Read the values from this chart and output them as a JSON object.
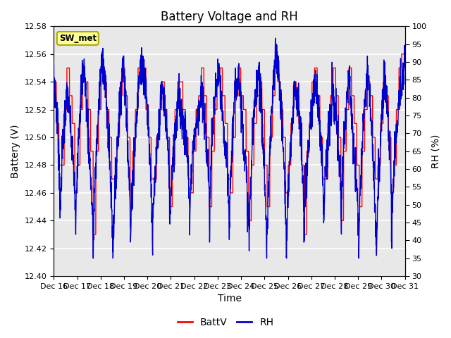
{
  "title": "Battery Voltage and RH",
  "xlabel": "Time",
  "ylabel_left": "Battery (V)",
  "ylabel_right": "RH (%)",
  "ylim_left": [
    12.4,
    12.58
  ],
  "ylim_right": [
    30,
    100
  ],
  "yticks_left": [
    12.4,
    12.42,
    12.44,
    12.46,
    12.48,
    12.5,
    12.52,
    12.54,
    12.56,
    12.58
  ],
  "yticks_right": [
    30,
    35,
    40,
    45,
    50,
    55,
    60,
    65,
    70,
    75,
    80,
    85,
    90,
    95,
    100
  ],
  "xtick_labels": [
    "Dec 16",
    "Dec 17",
    "Dec 18",
    "Dec 19",
    "Dec 20",
    "Dec 21",
    "Dec 22",
    "Dec 23",
    "Dec 24",
    "Dec 25",
    "Dec 26",
    "Dec 27",
    "Dec 28",
    "Dec 29",
    "Dec 30",
    "Dec 31"
  ],
  "battv_color": "#FF0000",
  "rh_color": "#0000CC",
  "background_color": "#FFFFFF",
  "plot_bg_color": "#E8E8E8",
  "grid_color": "#FFFFFF",
  "title_fontsize": 12,
  "axis_label_fontsize": 10,
  "tick_fontsize": 8,
  "legend_fontsize": 10,
  "station_label": "SW_met",
  "station_label_bg": "#FFFF99",
  "station_label_border": "#AAAA00",
  "n_points": 2000,
  "seed": 7
}
